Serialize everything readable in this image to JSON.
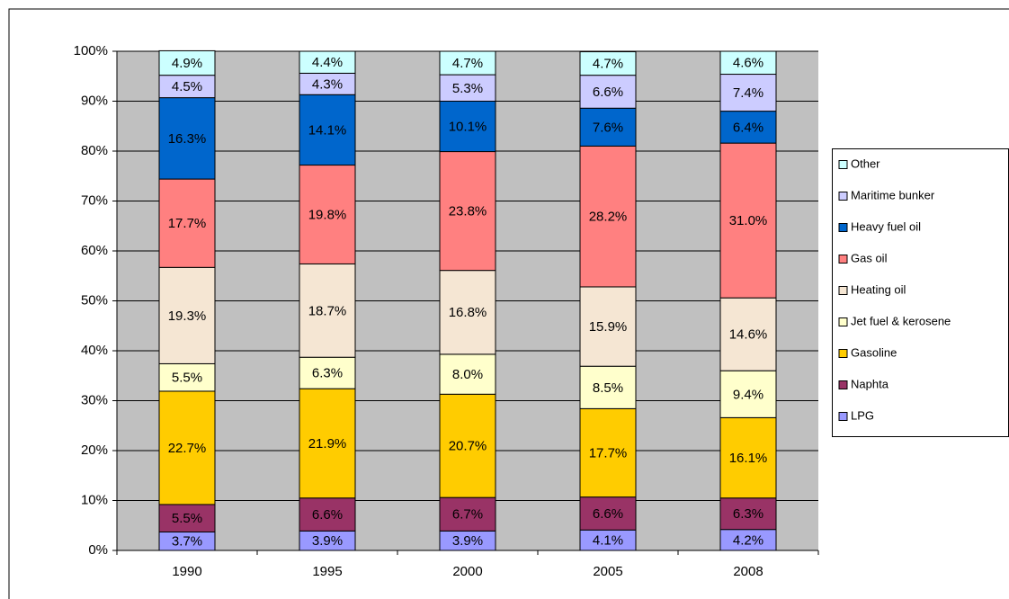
{
  "chart_data": {
    "type": "stacked-bar",
    "categories": [
      "1990",
      "1995",
      "2000",
      "2005",
      "2008"
    ],
    "ylim": [
      0,
      100
    ],
    "yticks": [
      {
        "value": 0,
        "label": "0%"
      },
      {
        "value": 10,
        "label": "10%"
      },
      {
        "value": 20,
        "label": "20%"
      },
      {
        "value": 30,
        "label": "30%"
      },
      {
        "value": 40,
        "label": "40%"
      },
      {
        "value": 50,
        "label": "50%"
      },
      {
        "value": 60,
        "label": "60%"
      },
      {
        "value": 70,
        "label": "70%"
      },
      {
        "value": 80,
        "label": "80%"
      },
      {
        "value": 90,
        "label": "90%"
      },
      {
        "value": 100,
        "label": "100%"
      }
    ],
    "grid": true,
    "legend": "right",
    "series": [
      {
        "name": "LPG",
        "color": "#9999ff",
        "values": [
          3.7,
          3.9,
          3.9,
          4.1,
          4.2
        ],
        "value_labels": [
          "3.7%",
          "3.9%",
          "3.9%",
          "4.1%",
          "4.2%"
        ]
      },
      {
        "name": "Naphta",
        "color": "#993366",
        "values": [
          5.5,
          6.6,
          6.7,
          6.6,
          6.3
        ],
        "value_labels": [
          "5.5%",
          "6.6%",
          "6.7%",
          "6.6%",
          "6.3%"
        ]
      },
      {
        "name": "Gasoline",
        "color": "#ffcc00",
        "values": [
          22.7,
          21.9,
          20.7,
          17.7,
          16.1
        ],
        "value_labels": [
          "22.7%",
          "21.9%",
          "20.7%",
          "17.7%",
          "16.1%"
        ]
      },
      {
        "name": "Jet fuel & kerosene",
        "color": "#ffffcc",
        "values": [
          5.5,
          6.3,
          8.0,
          8.5,
          9.4
        ],
        "value_labels": [
          "5.5%",
          "6.3%",
          "8.0%",
          "8.5%",
          "9.4%"
        ]
      },
      {
        "name": "Heating oil",
        "color": "#f5e6d3",
        "values": [
          19.3,
          18.7,
          16.8,
          15.9,
          14.6
        ],
        "value_labels": [
          "19.3%",
          "18.7%",
          "16.8%",
          "15.9%",
          "14.6%"
        ]
      },
      {
        "name": "Gas oil",
        "color": "#ff8080",
        "values": [
          17.7,
          19.8,
          23.8,
          28.2,
          31.0
        ],
        "value_labels": [
          "17.7%",
          "19.8%",
          "23.8%",
          "28.2%",
          "31.0%"
        ]
      },
      {
        "name": "Heavy fuel oil",
        "color": "#0066cc",
        "values": [
          16.3,
          14.1,
          10.1,
          7.6,
          6.4
        ],
        "value_labels": [
          "16.3%",
          "14.1%",
          "10.1%",
          "7.6%",
          "6.4%"
        ]
      },
      {
        "name": "Maritime bunker",
        "color": "#ccccff",
        "values": [
          4.5,
          4.3,
          5.3,
          6.6,
          7.4
        ],
        "value_labels": [
          "4.5%",
          "4.3%",
          "5.3%",
          "6.6%",
          "7.4%"
        ]
      },
      {
        "name": "Other",
        "color": "#ccffff",
        "values": [
          4.9,
          4.4,
          4.7,
          4.7,
          4.6
        ],
        "value_labels": [
          "4.9%",
          "4.4%",
          "4.7%",
          "4.7%",
          "4.6%"
        ]
      }
    ]
  }
}
